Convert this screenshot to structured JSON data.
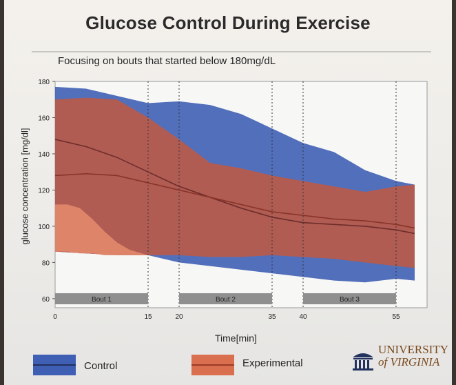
{
  "slide": {
    "title": "Glucose Control During Exercise",
    "subtitle": "Focusing on bouts that started below 180mg/dL"
  },
  "legend": [
    {
      "label": "Control",
      "fill": "#3f5fb5",
      "line": "#22305a"
    },
    {
      "label": "Experimental",
      "fill": "#d96f4e",
      "line": "#9a3a26"
    }
  ],
  "logo": {
    "line1": "UNIVERSITY",
    "line2": "of VIRGINIA"
  },
  "chart_data": {
    "type": "area",
    "xlabel": "Time[min]",
    "ylabel": "glucose concentration [mg/dl]",
    "xlim": [
      0,
      60
    ],
    "ylim": [
      55,
      180
    ],
    "xticks": [
      0,
      15,
      20,
      35,
      40,
      55
    ],
    "yticks": [
      60,
      80,
      100,
      120,
      140,
      160,
      180
    ],
    "vlines": [
      15,
      20,
      35,
      40,
      55
    ],
    "bouts": [
      {
        "label": "Bout 1",
        "start": 0,
        "end": 15
      },
      {
        "label": "Bout 2",
        "start": 20,
        "end": 35
      },
      {
        "label": "Bout 3",
        "start": 40,
        "end": 55
      }
    ],
    "series": [
      {
        "name": "Control",
        "band_outer": {
          "x": [
            0,
            5,
            10,
            15,
            20,
            25,
            30,
            35,
            40,
            45,
            50,
            55,
            58
          ],
          "upper": [
            177,
            176,
            172,
            168,
            169,
            167,
            162,
            154,
            146,
            141,
            131,
            125,
            123
          ],
          "lower": [
            86,
            85,
            84,
            84,
            80,
            78,
            76,
            74,
            72,
            70,
            69,
            71,
            70
          ]
        },
        "median": {
          "x": [
            0,
            5,
            10,
            15,
            20,
            25,
            30,
            35,
            40,
            45,
            50,
            55,
            58
          ],
          "y": [
            148,
            144,
            138,
            130,
            122,
            116,
            110,
            105,
            102,
            101,
            100,
            98,
            96
          ]
        }
      },
      {
        "name": "Experimental",
        "band_outer": {
          "x": [
            0,
            5,
            10,
            15,
            20,
            25,
            30,
            35,
            40,
            45,
            50,
            55,
            58
          ],
          "upper": [
            170,
            171,
            170,
            160,
            148,
            135,
            132,
            128,
            125,
            122,
            119,
            122,
            123
          ],
          "lower": [
            86,
            85,
            84,
            84,
            84,
            83,
            83,
            84,
            83,
            82,
            80,
            78,
            77
          ]
        },
        "inner_band": {
          "x": [
            0,
            2,
            4,
            6,
            8,
            10,
            12,
            15
          ],
          "upper": [
            112,
            112,
            110,
            104,
            97,
            91,
            87,
            84
          ],
          "lower": [
            86,
            86,
            85,
            85,
            84,
            84,
            84,
            84
          ]
        },
        "median": {
          "x": [
            0,
            5,
            10,
            15,
            20,
            25,
            30,
            35,
            40,
            45,
            50,
            55,
            58
          ],
          "y": [
            128,
            129,
            128,
            124,
            120,
            116,
            112,
            108,
            106,
            104,
            103,
            101,
            99
          ]
        }
      }
    ]
  }
}
